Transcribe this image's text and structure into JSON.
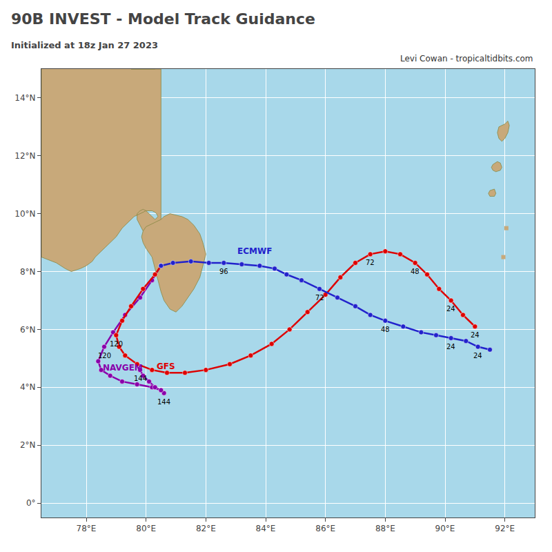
{
  "chart_data": {
    "type": "line",
    "title": "90B INVEST - Model Track Guidance",
    "subtitle": "Initialized at 18z Jan 27 2023",
    "credit": "Levi Cowan - tropicaltidbits.com",
    "xlim": [
      76.5,
      93.0
    ],
    "ylim": [
      -0.5,
      15.0
    ],
    "xticks": [
      {
        "value": 78,
        "label": "78°E"
      },
      {
        "value": 80,
        "label": "80°E"
      },
      {
        "value": 82,
        "label": "82°E"
      },
      {
        "value": 84,
        "label": "84°E"
      },
      {
        "value": 86,
        "label": "86°E"
      },
      {
        "value": 88,
        "label": "88°E"
      },
      {
        "value": 90,
        "label": "90°E"
      },
      {
        "value": 92,
        "label": "92°E"
      }
    ],
    "yticks": [
      {
        "value": 0,
        "label": "0°"
      },
      {
        "value": 2,
        "label": "2°N"
      },
      {
        "value": 4,
        "label": "4°N"
      },
      {
        "value": 6,
        "label": "6°N"
      },
      {
        "value": 8,
        "label": "8°N"
      },
      {
        "value": 10,
        "label": "10°N"
      },
      {
        "value": 12,
        "label": "12°N"
      },
      {
        "value": 14,
        "label": "14°N"
      }
    ],
    "grid": true,
    "grid_color": "#ffffff",
    "ocean_color": "#a8d8ea",
    "land": {
      "color": "#c8a97a",
      "edge_color": "#888844",
      "shapes": [
        {
          "x": [
            76.5,
            76.5,
            77.0,
            77.3,
            77.5,
            77.8,
            78.0,
            78.2,
            78.3,
            78.4,
            78.5,
            78.6,
            78.7,
            78.8,
            79.0,
            79.2,
            79.4,
            79.6,
            79.8,
            80.0,
            80.2,
            80.3,
            80.35,
            80.4,
            80.3,
            80.2,
            80.1,
            80.0,
            79.9,
            79.8,
            79.7,
            79.7,
            79.8,
            79.85,
            79.9,
            80.0,
            80.1,
            80.2,
            80.3,
            80.4,
            80.5,
            80.5,
            80.4,
            80.3,
            80.2,
            80.0,
            79.8,
            79.6,
            79.5,
            79.5,
            79.6,
            79.8,
            80.0,
            80.2,
            80.3,
            80.3
          ],
          "y": [
            15.0,
            8.5,
            8.3,
            8.1,
            8.0,
            8.1,
            8.2,
            8.35,
            8.5,
            8.6,
            8.7,
            8.8,
            8.9,
            9.0,
            9.2,
            9.5,
            9.7,
            9.9,
            10.0,
            10.1,
            10.1,
            10.05,
            10.0,
            9.9,
            9.8,
            9.9,
            10.0,
            10.1,
            10.15,
            10.1,
            10.0,
            9.8,
            9.6,
            9.5,
            9.4,
            9.3,
            9.2,
            9.1,
            9.0,
            8.9,
            8.8,
            15.0,
            15.0,
            15.0,
            15.0,
            15.0,
            15.0,
            15.0,
            15.0,
            15.0,
            15.0,
            15.0,
            15.0,
            15.0,
            15.0,
            15.0
          ]
        },
        {
          "x": [
            80.5,
            80.6,
            80.7,
            80.8,
            81.0,
            81.2,
            81.4,
            81.6,
            81.8,
            81.9,
            82.0,
            81.9,
            81.8,
            81.6,
            81.4,
            81.2,
            81.0,
            80.8,
            80.6,
            80.5,
            80.4,
            80.3,
            80.2,
            80.0,
            79.9,
            79.85,
            79.9,
            80.0,
            80.2,
            80.4,
            80.5
          ],
          "y": [
            9.8,
            9.9,
            9.95,
            10.0,
            9.95,
            9.9,
            9.8,
            9.6,
            9.3,
            9.0,
            8.6,
            8.2,
            7.8,
            7.4,
            7.1,
            6.8,
            6.6,
            6.7,
            7.0,
            7.3,
            7.7,
            8.1,
            8.5,
            8.8,
            9.0,
            9.2,
            9.4,
            9.55,
            9.65,
            9.75,
            9.8
          ]
        },
        {
          "x": [
            91.8,
            92.0,
            92.1,
            92.15,
            92.1,
            92.0,
            91.9,
            91.8,
            91.75,
            91.8
          ],
          "y": [
            13.0,
            13.1,
            13.2,
            13.05,
            12.8,
            12.6,
            12.5,
            12.6,
            12.8,
            13.0
          ]
        },
        {
          "x": [
            91.6,
            91.75,
            91.85,
            91.9,
            91.85,
            91.7,
            91.6,
            91.55,
            91.6
          ],
          "y": [
            11.7,
            11.8,
            11.75,
            11.6,
            11.5,
            11.45,
            11.5,
            11.6,
            11.7
          ]
        },
        {
          "x": [
            91.5,
            91.65,
            91.7,
            91.65,
            91.5,
            91.45,
            91.5
          ],
          "y": [
            10.8,
            10.85,
            10.7,
            10.6,
            10.6,
            10.7,
            10.8
          ]
        }
      ],
      "points": {
        "x": [
          92.05,
          91.95
        ],
        "y": [
          9.5,
          8.5
        ]
      }
    },
    "series": [
      {
        "name": "ECMWF",
        "color": "#2222cc",
        "label_color": "#000000",
        "x": [
          80.5,
          80.9,
          81.5,
          82.1,
          82.6,
          83.2,
          83.8,
          84.3,
          84.7,
          85.2,
          85.8,
          86.4,
          87.0,
          87.5,
          88.0,
          88.6,
          89.2,
          89.7,
          90.2,
          90.7,
          91.1,
          91.5
        ],
        "values": [
          8.2,
          8.3,
          8.35,
          8.3,
          8.3,
          8.25,
          8.2,
          8.1,
          7.9,
          7.7,
          7.4,
          7.1,
          6.8,
          6.5,
          6.3,
          6.1,
          5.9,
          5.8,
          5.7,
          5.6,
          5.4,
          5.3
        ],
        "point_labels": [
          null,
          null,
          null,
          null,
          "96",
          null,
          null,
          null,
          null,
          null,
          "72",
          null,
          null,
          null,
          "48",
          null,
          null,
          null,
          "24",
          null,
          "24",
          null
        ],
        "name_position": [
          83.0,
          8.5
        ]
      },
      {
        "name": "GFS",
        "color": "#dd0000",
        "label_color": "#000000",
        "x": [
          80.5,
          80.3,
          79.9,
          79.5,
          79.2,
          79.0,
          79.1,
          79.3,
          79.7,
          80.2,
          80.7,
          81.3,
          82.0,
          82.8,
          83.5,
          84.2,
          84.8,
          85.4,
          86.0,
          86.5,
          87.0,
          87.5,
          88.0,
          88.5,
          89.0,
          89.4,
          89.8,
          90.2,
          90.6,
          91.0
        ],
        "values": [
          8.2,
          7.9,
          7.4,
          6.8,
          6.3,
          5.8,
          5.4,
          5.1,
          4.8,
          4.6,
          4.5,
          4.5,
          4.6,
          4.8,
          5.1,
          5.5,
          6.0,
          6.6,
          7.2,
          7.8,
          8.3,
          8.6,
          8.7,
          8.6,
          8.3,
          7.9,
          7.4,
          7.0,
          6.5,
          6.1
        ],
        "point_labels": [
          null,
          null,
          null,
          null,
          null,
          "120",
          null,
          null,
          null,
          null,
          null,
          null,
          null,
          null,
          null,
          null,
          null,
          null,
          null,
          null,
          null,
          "72",
          null,
          null,
          "48",
          null,
          null,
          "24",
          null,
          "24"
        ],
        "name_position": [
          80.3,
          4.5
        ]
      },
      {
        "name": "NAVGEM",
        "color": "#8800aa",
        "label_color": "#000000",
        "x": [
          80.5,
          80.2,
          79.8,
          79.3,
          78.9,
          78.6,
          78.4,
          78.5,
          78.8,
          79.2,
          79.7,
          80.2,
          80.5,
          80.6,
          80.5,
          80.3,
          80.1,
          79.9,
          79.8
        ],
        "values": [
          8.2,
          7.7,
          7.1,
          6.5,
          5.9,
          5.4,
          4.9,
          4.6,
          4.4,
          4.2,
          4.1,
          4.0,
          3.9,
          3.8,
          3.9,
          4.0,
          4.2,
          4.4,
          4.6
        ],
        "point_labels": [
          null,
          null,
          null,
          null,
          null,
          "120",
          null,
          null,
          null,
          null,
          null,
          null,
          null,
          "144",
          null,
          null,
          null,
          null,
          "144"
        ],
        "name_position": [
          78.5,
          4.45
        ]
      }
    ]
  }
}
